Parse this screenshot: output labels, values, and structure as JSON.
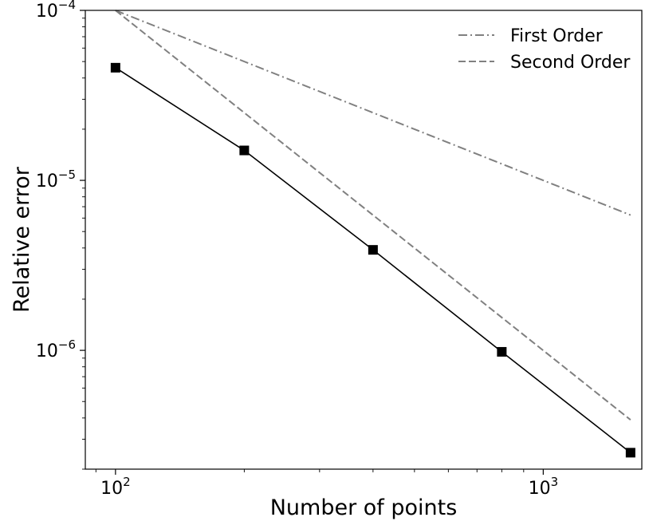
{
  "chart_data": {
    "type": "line",
    "xscale": "log",
    "yscale": "log",
    "xlim": [
      85,
      1700
    ],
    "ylim": [
      2e-07,
      0.0001
    ],
    "xlabel": "Number of points",
    "ylabel": "Relative error",
    "grid": false,
    "legend": "top-right",
    "x_ticks": [
      {
        "value": 100,
        "label_base": "10",
        "label_exp": "2"
      },
      {
        "value": 1000,
        "label_base": "10",
        "label_exp": "3"
      }
    ],
    "y_ticks": [
      {
        "value": 1e-06,
        "label_base": "10",
        "label_exp": "−6"
      },
      {
        "value": 1e-05,
        "label_base": "10",
        "label_exp": "−5"
      },
      {
        "value": 0.0001,
        "label_base": "10",
        "label_exp": "−4"
      }
    ],
    "series": [
      {
        "name": "",
        "style": "solid",
        "marker": "square",
        "color": "#000000",
        "x": [
          100,
          200,
          400,
          800,
          1600
        ],
        "y": [
          4.6e-05,
          1.5e-05,
          3.9e-06,
          9.8e-07,
          2.5e-07
        ]
      },
      {
        "name": "First Order",
        "style": "dashdot",
        "marker": "none",
        "color": "#808080",
        "x": [
          100,
          1600
        ],
        "y": [
          0.0001,
          6.25e-06
        ]
      },
      {
        "name": "Second Order",
        "style": "dashed",
        "marker": "none",
        "color": "#808080",
        "x": [
          100,
          1600
        ],
        "y": [
          0.0001,
          3.9e-07
        ]
      }
    ]
  }
}
